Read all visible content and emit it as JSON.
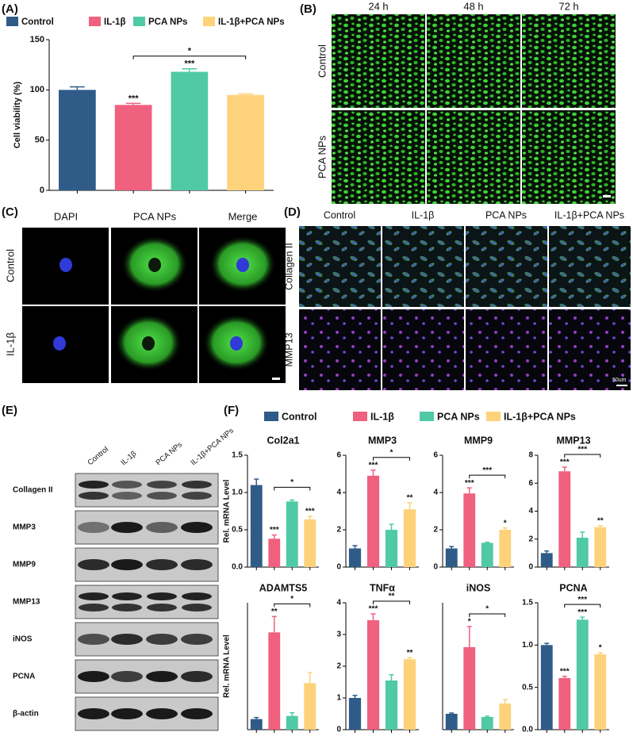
{
  "panel_labels": [
    "(A)",
    "(B)",
    "(C)",
    "(D)",
    "(E)",
    "(F)"
  ],
  "panel_b": {
    "columns": [
      "24 h",
      "48 h",
      "72 h"
    ],
    "rows": [
      "Control",
      "PCA NPs"
    ]
  },
  "panel_c": {
    "columns": [
      "DAPI",
      "PCA NPs",
      "Merge"
    ],
    "rows": [
      "Control",
      "IL-1β"
    ]
  },
  "panel_d": {
    "columns": [
      "Control",
      "IL-1β",
      "PCA NPs",
      "IL-1β+PCA NPs"
    ],
    "rows": [
      "Collagen II",
      "MMP13"
    ],
    "scale_bar": "50um"
  },
  "panel_e": {
    "lanes": [
      "Control",
      "IL-1β",
      "PCA NPs",
      "IL-1β+PCA NPs"
    ],
    "rows": [
      "Collagen II",
      "MMP3",
      "MMP9",
      "MMP13",
      "iNOS",
      "PCNA",
      "β-actin"
    ]
  },
  "panel_f_legend": {
    "names": [
      "Control",
      "IL-1β",
      "PCA NPs",
      "IL-1β+PCA NPs"
    ],
    "colors": [
      "#2f5b88",
      "#f0607f",
      "#4fcaa5",
      "#fdd27a"
    ]
  },
  "chart_data": [
    {
      "type": "bar",
      "categories": [
        "Control",
        "IL-1β",
        "PCA NPs",
        "IL-1β+PCA NPs"
      ],
      "colors": [
        "#2f5b88",
        "#f0607f",
        "#4fcaa5",
        "#fdd27a"
      ],
      "values": [
        100,
        85,
        118,
        95
      ],
      "errors": [
        3,
        1.5,
        3,
        1
      ],
      "annotations": [
        null,
        "***",
        "***",
        null
      ],
      "bracket": "*",
      "ylabel": "Cell viability (%)",
      "ylim": [
        0,
        150
      ],
      "yticks": [
        0,
        50,
        100,
        150
      ]
    },
    {
      "type": "bar",
      "title": "Col2a1",
      "ylabel": "Rel. mRNA Level",
      "values": [
        1.1,
        0.38,
        0.88,
        0.64
      ],
      "errors": [
        0.08,
        0.05,
        0.02,
        0.04
      ],
      "annotations": [
        null,
        "***",
        null,
        "***"
      ],
      "bracket": "*",
      "ylim": [
        0,
        1.5
      ],
      "yticks": [
        {
          "value": 0,
          "label": "0.0"
        },
        {
          "value": 0.5,
          "label": "0.5"
        },
        {
          "value": 1,
          "label": "1.0"
        },
        {
          "value": 1.5,
          "label": "1.5"
        }
      ]
    },
    {
      "type": "bar",
      "title": "MMP3",
      "values": [
        1.0,
        4.9,
        2.0,
        3.1
      ],
      "errors": [
        0.15,
        0.3,
        0.3,
        0.35
      ],
      "annotations": [
        null,
        "***",
        null,
        "**"
      ],
      "bracket": "*",
      "ylim": [
        0,
        6
      ],
      "yticks": [
        0,
        2,
        4,
        6
      ]
    },
    {
      "type": "bar",
      "title": "MMP9",
      "values": [
        1.0,
        3.95,
        1.3,
        2.0
      ],
      "errors": [
        0.1,
        0.3,
        0.03,
        0.1
      ],
      "annotations": [
        null,
        "***",
        null,
        "*"
      ],
      "bracket": "***",
      "ylim": [
        0,
        6
      ],
      "yticks": [
        0,
        2,
        4,
        6
      ]
    },
    {
      "type": "bar",
      "title": "MMP13",
      "values": [
        1.0,
        6.85,
        2.1,
        2.85
      ],
      "errors": [
        0.15,
        0.3,
        0.4,
        0.1
      ],
      "annotations": [
        null,
        "***",
        null,
        "**"
      ],
      "bracket": "***",
      "ylim": [
        0,
        8
      ],
      "yticks": [
        0,
        2,
        4,
        6,
        8
      ]
    },
    {
      "type": "bar",
      "title": "ADAMTS5",
      "ylabel": "Rel. mRNA Level",
      "values": [
        1.0,
        9.2,
        1.3,
        4.4
      ],
      "errors": [
        0.15,
        1.5,
        0.3,
        1.0
      ],
      "annotations": [
        null,
        "**",
        null,
        null
      ],
      "bracket": "*",
      "ylim": [
        0,
        12
      ]
    },
    {
      "type": "bar",
      "title": "TNFα",
      "values": [
        1.0,
        3.45,
        1.55,
        2.22
      ],
      "errors": [
        0.08,
        0.2,
        0.18,
        0.05
      ],
      "annotations": [
        null,
        "***",
        null,
        "**"
      ],
      "bracket": "**",
      "ylim": [
        0,
        4
      ],
      "yticks": [
        0,
        1,
        2,
        3,
        4
      ]
    },
    {
      "type": "bar",
      "title": "iNOS",
      "values": [
        1.0,
        5.2,
        0.8,
        1.65
      ],
      "errors": [
        0.05,
        1.3,
        0.05,
        0.25
      ],
      "annotations": [
        null,
        "*",
        null,
        null
      ],
      "bracket": "*",
      "ylim": [
        0,
        8
      ]
    },
    {
      "type": "bar",
      "title": "PCNA",
      "values": [
        1.0,
        0.61,
        1.3,
        0.89
      ],
      "errors": [
        0.02,
        0.02,
        0.03,
        0.02
      ],
      "annotations": [
        null,
        "***",
        "***",
        "*"
      ],
      "bracket": "***",
      "ylim": [
        0,
        1.5
      ],
      "yticks": [
        {
          "value": 0,
          "label": "0.0"
        },
        {
          "value": 0.5,
          "label": "0.5"
        },
        {
          "value": 1,
          "label": "1.0"
        },
        {
          "value": 1.5,
          "label": "1.5"
        }
      ]
    }
  ]
}
